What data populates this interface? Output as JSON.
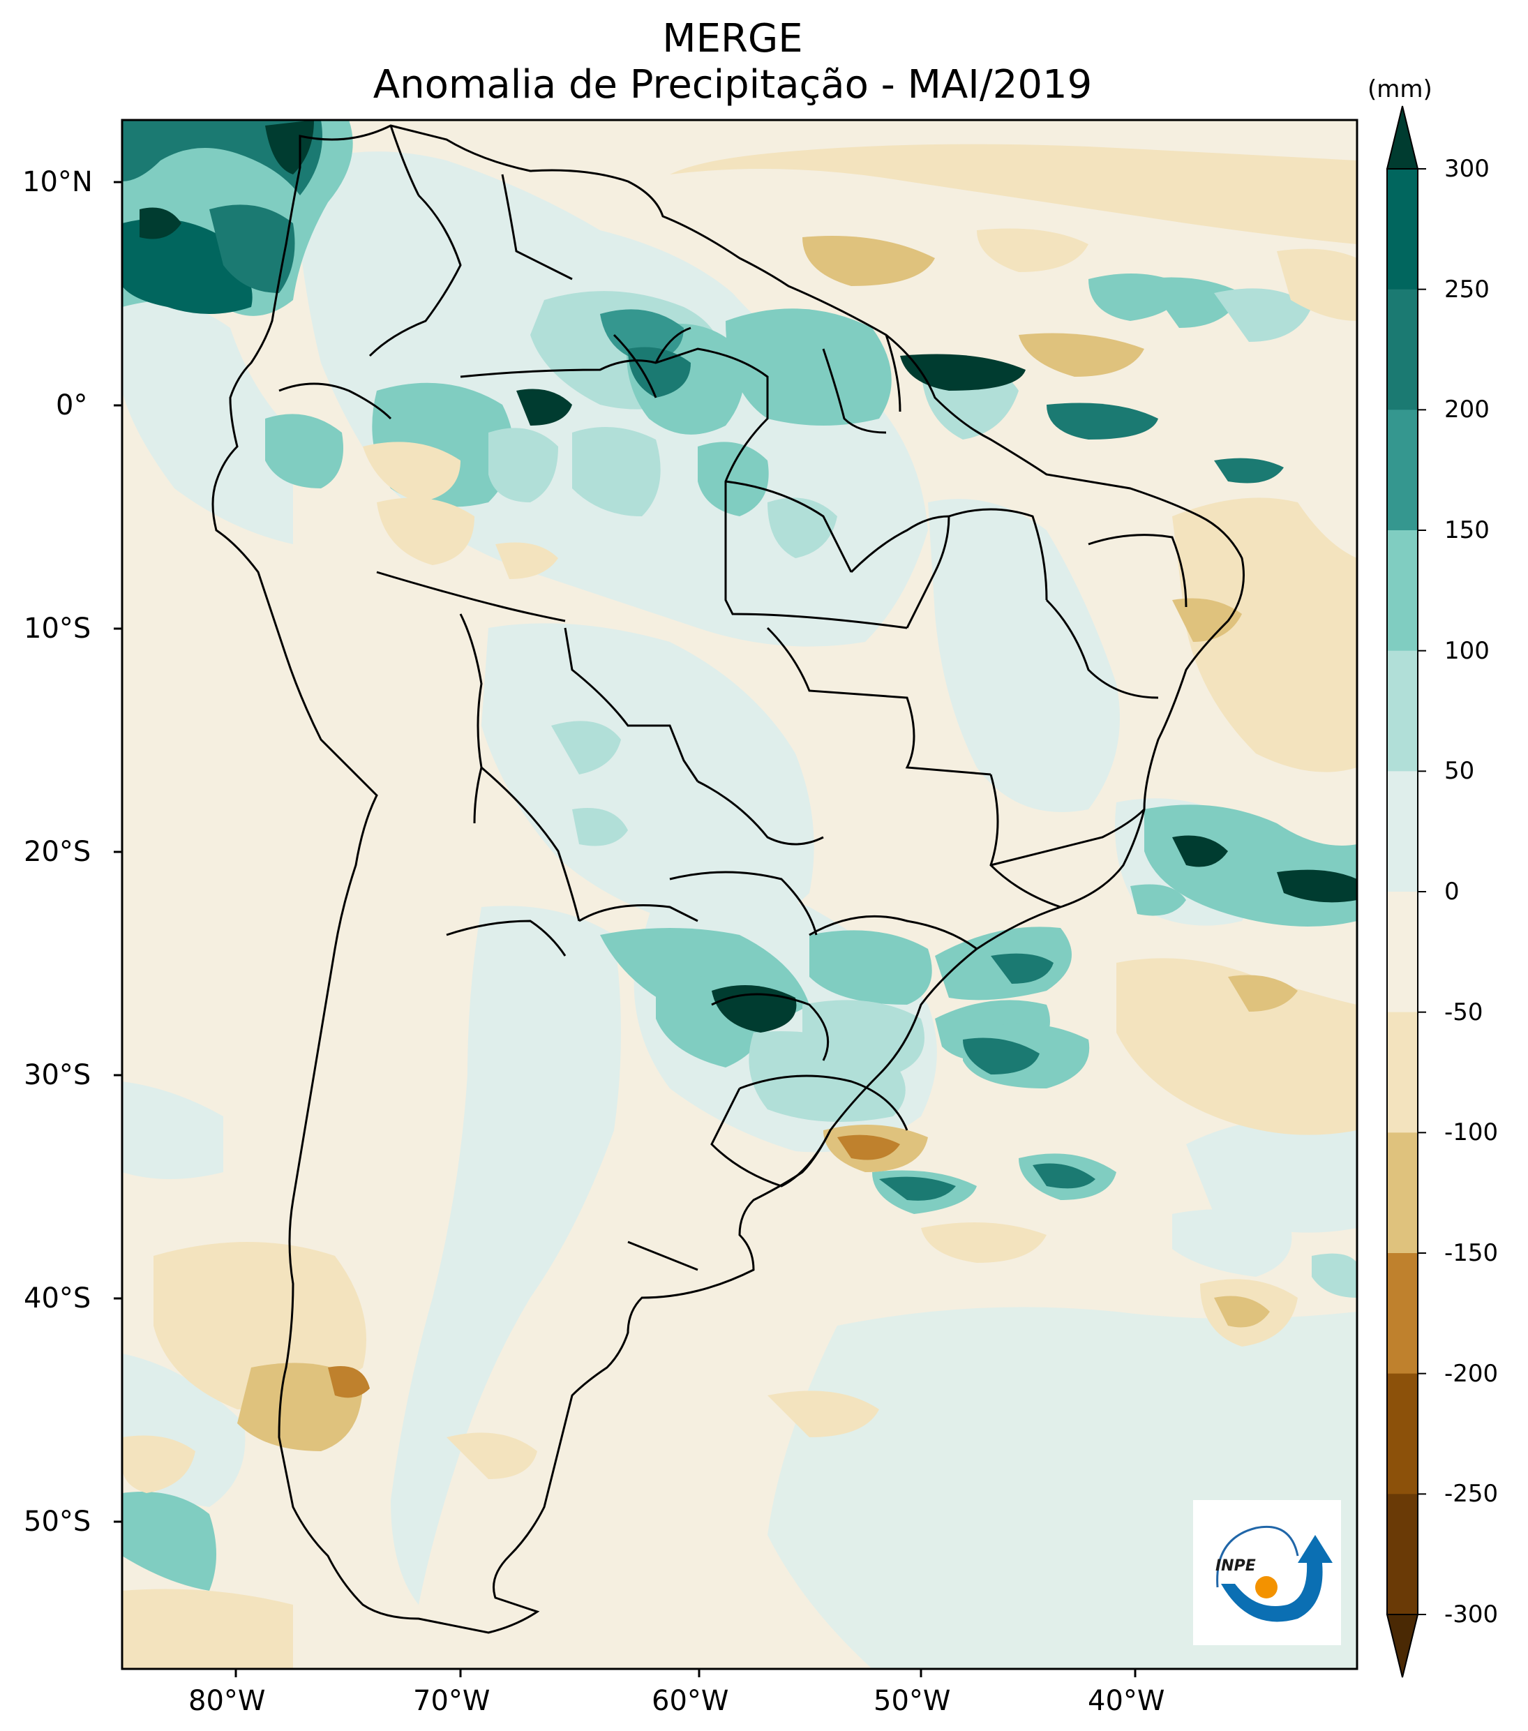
{
  "title": "MERGE",
  "subtitle": "Anomalia de Precipitação - MAI/2019",
  "colorbar": {
    "unit": "(mm)",
    "ticks": [
      "300",
      "250",
      "200",
      "150",
      "100",
      "50",
      "0",
      "-50",
      "-100",
      "-150",
      "-200",
      "-250",
      "-300"
    ],
    "colors": [
      "#01665e",
      "#1b7a72",
      "#35978f",
      "#80cdc1",
      "#b1dfd8",
      "#dfeeeb",
      "#f5efe0",
      "#f3e3be",
      "#dfc27d",
      "#bf812d",
      "#8c510a",
      "#6a3a06"
    ],
    "extend_low_color": "#4a2904",
    "extend_high_color": "#003c30"
  },
  "axes": {
    "lat_labels": [
      "10°N",
      "0°",
      "10°S",
      "20°S",
      "30°S",
      "40°S",
      "50°S"
    ],
    "lon_labels": [
      "80°W",
      "70°W",
      "60°W",
      "50°W",
      "40°W"
    ]
  },
  "logo": {
    "text": "INPE"
  }
}
